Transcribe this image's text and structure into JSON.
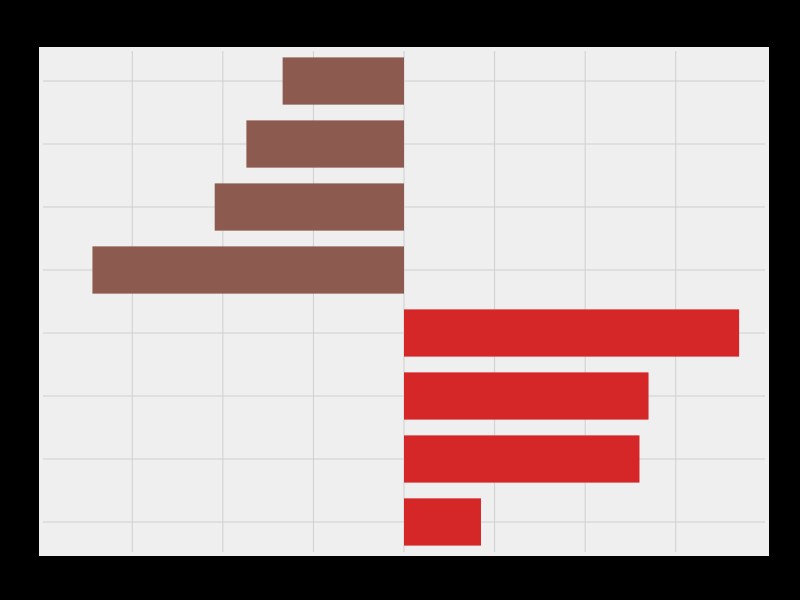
{
  "chart_data": {
    "type": "barh",
    "categories": [
      null,
      null,
      null,
      null,
      null,
      null,
      null,
      null
    ],
    "values": [
      -1.34,
      -1.74,
      -2.09,
      -3.44,
      3.7,
      2.7,
      2.6,
      0.85
    ],
    "colors": [
      "#8c5a4e",
      "#8c5a4e",
      "#8c5a4e",
      "#8c5a4e",
      "#d62728",
      "#d62728",
      "#d62728",
      "#d62728"
    ],
    "xlim": [
      -4.03,
      4.03
    ],
    "xticks": [
      -3,
      -2,
      -1,
      0,
      1,
      2,
      3
    ],
    "grid": true
  }
}
